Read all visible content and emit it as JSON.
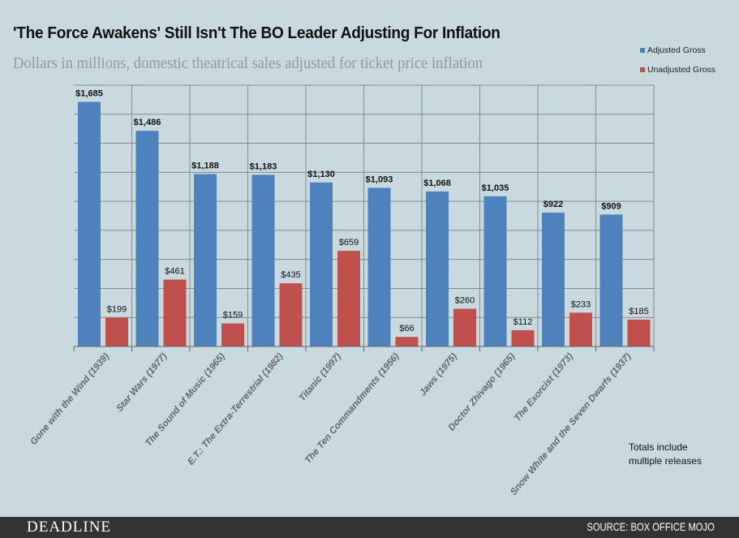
{
  "chart_data": {
    "type": "bar",
    "title": "'The Force Awakens' Still Isn't The BO Leader Adjusting For Inflation",
    "subtitle": "Dollars in millions, domestic theatrical sales adjusted for ticket price inflation",
    "categories": [
      "Gone with the Wind (1939)",
      "Star Wars (1977)",
      "The Sound of Music (1965)",
      "E.T.: The Extra-Terrestrial (1982)",
      "Titanic (1997)",
      "The Ten Commandments (1956)",
      "Jaws (1975)",
      "Doctor Zhivago (1965)",
      "The Exorcist  (1973)",
      "Snow White and the Seven Dwarfs (1937)"
    ],
    "series": [
      {
        "name": "Adjusted Gross",
        "color": "#4f81bd",
        "values": [
          1685,
          1486,
          1188,
          1183,
          1130,
          1093,
          1068,
          1035,
          922,
          909
        ],
        "labels": [
          "$1,685",
          "$1,486",
          "$1,188",
          "$1,183",
          "$1,130",
          "$1,093",
          "$1,068",
          "$1,035",
          "$922",
          "$909"
        ]
      },
      {
        "name": "Unadjusted Gross",
        "color": "#c0504d",
        "values": [
          199,
          461,
          159,
          435,
          659,
          66,
          260,
          112,
          233,
          185
        ],
        "labels": [
          "$199",
          "$461",
          "$159",
          "$435",
          "$659",
          "$66",
          "$260",
          "$112",
          "$233",
          "$185"
        ]
      }
    ],
    "ylim": [
      0,
      1800
    ],
    "ytick_step": 200,
    "grid": true,
    "legend": "top-right",
    "xlabel": "",
    "ylabel": ""
  },
  "note": [
    "Totals include",
    "multiple releases"
  ],
  "footer": {
    "brand": "DEADLINE",
    "source": "SOURCE: BOX OFFICE MOJO"
  }
}
